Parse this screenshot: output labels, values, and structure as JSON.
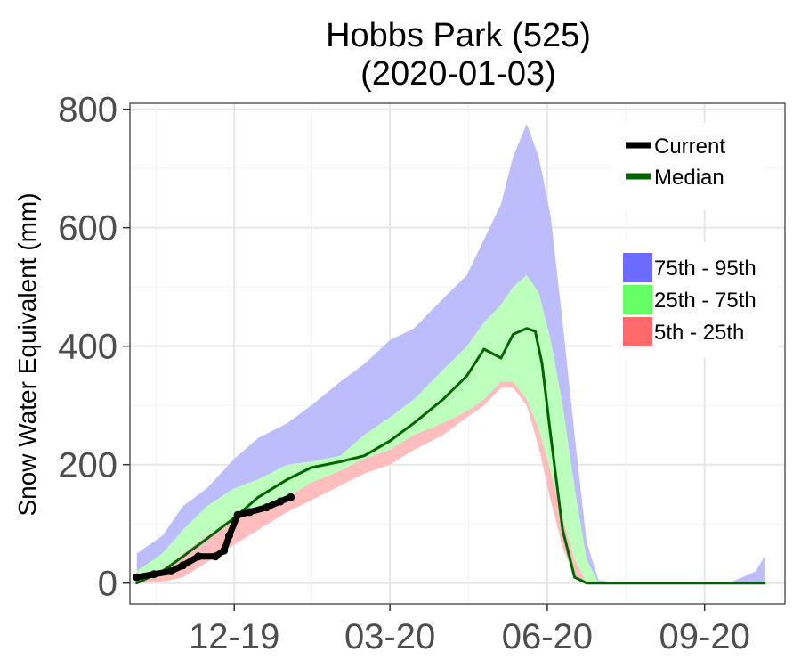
{
  "chart_data": {
    "type": "area",
    "title": "Hobbs Park (525)",
    "subtitle": "(2020-01-03)",
    "xlabel": "",
    "ylabel": "Snow Water Equivalent (mm)",
    "ylim": [
      -35,
      810
    ],
    "xlim": [
      "2019-10-01",
      "2020-10-18"
    ],
    "x_ticks": [
      {
        "date": "2019-12-01",
        "label": "12-19"
      },
      {
        "date": "2020-03-01",
        "label": "03-20"
      },
      {
        "date": "2020-06-01",
        "label": "06-20"
      },
      {
        "date": "2020-09-01",
        "label": "09-20"
      }
    ],
    "y_ticks": [
      0,
      200,
      400,
      600,
      800
    ],
    "grid": true,
    "legend": {
      "placement": "top-right",
      "lines": [
        {
          "name": "Current",
          "color": "#000000"
        },
        {
          "name": "Median",
          "color": "#006400"
        }
      ],
      "bands": [
        {
          "name": "75th - 95th",
          "color": "#6b6bff"
        },
        {
          "name": "25th - 75th",
          "color": "#66ff66"
        },
        {
          "name": "5th - 25th",
          "color": "#ff6b6b"
        }
      ]
    },
    "bands": {
      "x": [
        "2019-10-05",
        "2019-10-20",
        "2019-11-01",
        "2019-11-15",
        "2019-12-01",
        "2019-12-15",
        "2020-01-01",
        "2020-01-15",
        "2020-02-01",
        "2020-02-15",
        "2020-03-01",
        "2020-03-15",
        "2020-04-01",
        "2020-04-15",
        "2020-04-25",
        "2020-05-05",
        "2020-05-12",
        "2020-05-20",
        "2020-05-27",
        "2020-06-03",
        "2020-06-10",
        "2020-06-17",
        "2020-06-24",
        "2020-07-01",
        "2020-07-15",
        "2020-08-01",
        "2020-08-15",
        "2020-09-01",
        "2020-09-15",
        "2020-10-01",
        "2020-10-06"
      ],
      "p5": [
        0,
        2,
        10,
        35,
        65,
        90,
        120,
        140,
        165,
        185,
        200,
        225,
        250,
        280,
        300,
        330,
        330,
        300,
        230,
        140,
        60,
        10,
        0,
        0,
        0,
        0,
        0,
        0,
        0,
        0,
        0
      ],
      "p25": [
        0,
        20,
        50,
        80,
        105,
        125,
        145,
        170,
        190,
        210,
        225,
        250,
        270,
        290,
        310,
        340,
        340,
        310,
        260,
        190,
        110,
        40,
        0,
        0,
        0,
        0,
        0,
        0,
        0,
        0,
        0
      ],
      "p75": [
        20,
        50,
        90,
        130,
        160,
        175,
        200,
        205,
        215,
        250,
        280,
        310,
        360,
        400,
        440,
        470,
        500,
        520,
        490,
        410,
        300,
        160,
        40,
        0,
        0,
        0,
        0,
        0,
        0,
        0,
        0
      ],
      "p95": [
        50,
        80,
        130,
        160,
        210,
        245,
        270,
        300,
        340,
        370,
        410,
        430,
        480,
        520,
        580,
        640,
        720,
        775,
        720,
        620,
        440,
        250,
        70,
        5,
        0,
        0,
        0,
        0,
        0,
        20,
        45
      ]
    },
    "series": [
      {
        "name": "Median",
        "color": "#006400",
        "x": [
          "2019-10-05",
          "2019-10-20",
          "2019-11-01",
          "2019-11-15",
          "2019-12-01",
          "2019-12-15",
          "2020-01-01",
          "2020-01-15",
          "2020-02-01",
          "2020-02-15",
          "2020-03-01",
          "2020-03-15",
          "2020-04-01",
          "2020-04-15",
          "2020-04-25",
          "2020-05-05",
          "2020-05-12",
          "2020-05-20",
          "2020-05-25",
          "2020-05-29",
          "2020-06-03",
          "2020-06-10",
          "2020-06-17",
          "2020-06-24",
          "2020-07-15",
          "2020-08-15",
          "2020-09-15",
          "2020-10-06"
        ],
        "y": [
          0,
          20,
          45,
          75,
          110,
          145,
          175,
          195,
          205,
          215,
          240,
          270,
          310,
          350,
          395,
          380,
          420,
          430,
          425,
          370,
          250,
          90,
          10,
          0,
          0,
          0,
          0,
          0
        ]
      },
      {
        "name": "Current",
        "color": "#000000",
        "x": [
          "2019-10-05",
          "2019-10-15",
          "2019-10-25",
          "2019-11-01",
          "2019-11-10",
          "2019-11-20",
          "2019-11-25",
          "2019-11-28",
          "2019-12-03",
          "2019-12-10",
          "2019-12-20",
          "2019-12-28",
          "2020-01-03"
        ],
        "y": [
          10,
          15,
          20,
          30,
          45,
          45,
          55,
          80,
          115,
          120,
          128,
          138,
          145
        ]
      }
    ]
  }
}
